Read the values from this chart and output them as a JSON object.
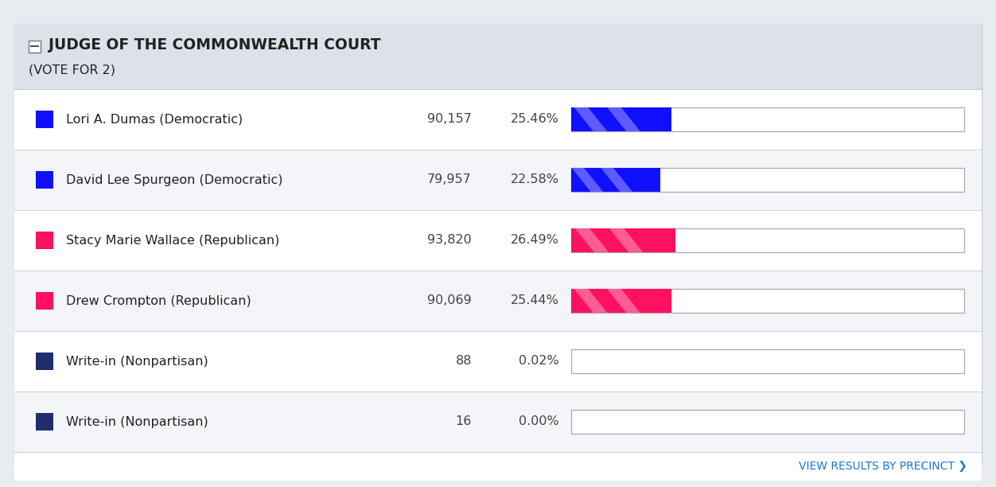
{
  "title": "JUDGE OF THE COMMONWEALTH COURT",
  "subtitle": "(VOTE FOR 2)",
  "candidates": [
    {
      "name": "Lori A. Dumas (Democratic)",
      "votes": "90,157",
      "pct": 25.46,
      "pct_str": "25.46%",
      "color": "#1010ff",
      "party": "dem"
    },
    {
      "name": "David Lee Spurgeon (Democratic)",
      "votes": "79,957",
      "pct": 22.58,
      "pct_str": "22.58%",
      "color": "#1010ff",
      "party": "dem"
    },
    {
      "name": "Stacy Marie Wallace (Republican)",
      "votes": "93,820",
      "pct": 26.49,
      "pct_str": "26.49%",
      "color": "#ff1060",
      "party": "rep"
    },
    {
      "name": "Drew Crompton (Republican)",
      "votes": "90,069",
      "pct": 25.44,
      "pct_str": "25.44%",
      "color": "#ff1060",
      "party": "rep"
    },
    {
      "name": "Write-in (Nonpartisan)",
      "votes": "88",
      "pct": 0.02,
      "pct_str": "0.02%",
      "color": "#1e2d6b",
      "party": "non"
    },
    {
      "name": "Write-in (Nonpartisan)",
      "votes": "16",
      "pct": 0.0,
      "pct_str": "0.00%",
      "color": "#1e2d6b",
      "party": "non"
    }
  ],
  "header_bg": "#dde1ea",
  "row_bg_even": "#ffffff",
  "row_bg_odd": "#f4f5f8",
  "border_color": "#c8ccd6",
  "text_color": "#222222",
  "vote_color": "#444444",
  "pct_color": "#444444",
  "link_color": "#1a78c2",
  "footer_text": "VIEW RESULTS BY PRECINCT ❯",
  "bar_bg": "#f0f0f0",
  "bar_border": "#aaaaaa",
  "outer_bg": "#e8ebf0"
}
